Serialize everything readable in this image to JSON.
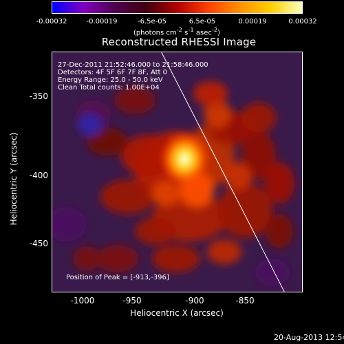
{
  "colorbar": {
    "ticks": [
      "-0.00032",
      "-0.00019",
      "-6.5e-05",
      "6.5e-05",
      "0.00019",
      "0.00032"
    ],
    "units_prefix": "(photons cm",
    "units_exp1": "-2",
    "units_mid1": " s",
    "units_exp2": "-1",
    "units_mid2": " asec",
    "units_exp3": "-2",
    "units_suffix": ")",
    "colormap": [
      "#0000ff",
      "#8000c0",
      "#500050",
      "#400010",
      "#b00000",
      "#ff4000",
      "#ff9000",
      "#ffd000",
      "#ffffc0"
    ]
  },
  "title": "Reconstructed RHESSI Image",
  "info": {
    "time_range": "27-Dec-2011 21:52:46.000 to 21:58:46.000",
    "detectors": "Detectors: 4F 5F 6F 7F 8F, Att 0",
    "energy": "Energy Range: 25.0 - 50.0 keV",
    "clean": "Clean    Total counts: 1.00E+04",
    "peak": "Position of Peak = [-913,-396]"
  },
  "axes": {
    "xlabel": "Heliocentric X (arcsec)",
    "ylabel": "Heliocentric Y (arcsec)",
    "xticks": [
      "-1000",
      "-950",
      "-900",
      "-850"
    ],
    "yticks": [
      "-350",
      "-400",
      "-450"
    ],
    "xlim": [
      -1010,
      -827
    ],
    "ylim": [
      -493,
      -318
    ]
  },
  "image": {
    "peak_position": [
      -913,
      -396
    ],
    "limb_line": [
      [
        -930,
        -318
      ],
      [
        -840,
        -493
      ]
    ]
  },
  "datestamp": "20-Aug-2013 12:54"
}
